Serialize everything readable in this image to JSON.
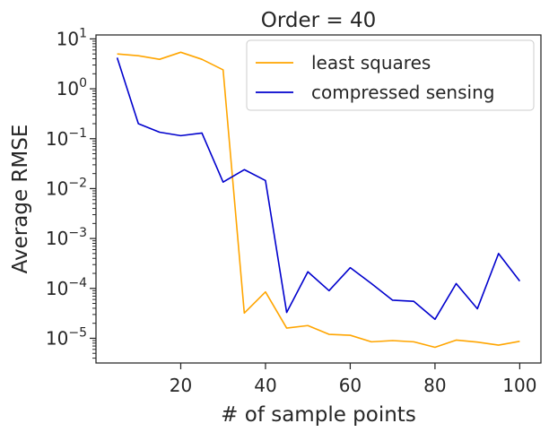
{
  "chart_data": {
    "type": "line",
    "title": "Order = 40",
    "xlabel": "# of sample points",
    "ylabel": "Average RMSE",
    "x_scale": "linear",
    "y_scale": "log",
    "xlim": [
      0,
      105
    ],
    "ylim": [
      3.2e-06,
      12
    ],
    "x_ticks": [
      20,
      40,
      60,
      80,
      100
    ],
    "x_tick_labels": [
      "20",
      "40",
      "60",
      "80",
      "100"
    ],
    "y_tick_exponents": [
      -5,
      -4,
      -3,
      -2,
      -1,
      0,
      1
    ],
    "y_tick_base": "10",
    "grid": false,
    "legend_position": "top-right",
    "x": [
      5,
      10,
      15,
      20,
      25,
      30,
      35,
      40,
      45,
      50,
      55,
      60,
      65,
      70,
      75,
      80,
      85,
      90,
      95,
      100
    ],
    "series": [
      {
        "name": "least squares",
        "color": "#ffa500",
        "values": [
          5.0,
          4.6,
          3.9,
          5.4,
          3.9,
          2.4,
          3.2e-05,
          8.5e-05,
          1.6e-05,
          1.8e-05,
          1.2e-05,
          1.15e-05,
          8.5e-06,
          9e-06,
          8.5e-06,
          6.6e-06,
          9.2e-06,
          8.4e-06,
          7.3e-06,
          8.7e-06
        ]
      },
      {
        "name": "compressed sensing",
        "color": "#0000cd",
        "values": [
          4.2,
          0.2,
          0.135,
          0.115,
          0.13,
          0.0135,
          0.024,
          0.0145,
          3.3e-05,
          0.000215,
          9e-05,
          0.00026,
          0.000125,
          5.8e-05,
          5.5e-05,
          2.4e-05,
          0.000125,
          3.9e-05,
          0.0005,
          0.00014
        ]
      }
    ]
  }
}
